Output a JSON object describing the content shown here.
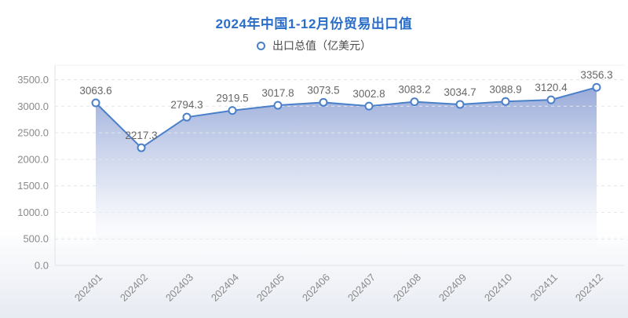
{
  "chart_data": {
    "type": "line",
    "title": "2024年中国1-12月份贸易出口值",
    "legend": {
      "label": "出口总值（亿美元）",
      "marker": "hollow-circle",
      "position": "top-center"
    },
    "series_name": "出口总值",
    "unit": "亿美元",
    "categories": [
      "202401",
      "202402",
      "202403",
      "202404",
      "202405",
      "202406",
      "202407",
      "202408",
      "202409",
      "202410",
      "202411",
      "202412"
    ],
    "values": [
      3063.6,
      2217.3,
      2794.3,
      2919.5,
      3017.8,
      3073.5,
      3002.8,
      3083.2,
      3034.7,
      3088.9,
      3120.4,
      3356.3
    ],
    "ylim": [
      0,
      3500
    ],
    "y_tick_step": 500,
    "y_tick_labels": [
      "0.0",
      "500.0",
      "1000.0",
      "1500.0",
      "2000.0",
      "2500.0",
      "3000.0",
      "3500.0"
    ],
    "x_label_rotation": 45,
    "grid": "horizontal-dashed",
    "area_fill": "gradient-fade-to-bottom",
    "colors": {
      "title": "#2a6ec9",
      "line": "#4a80ca",
      "marker_fill": "#ffffff",
      "area_top": "#93a6d7",
      "area_mid": "#c6d0e9",
      "grid_line": "#e3e5ec",
      "axis_line": "#dfe2e9",
      "value_label": "#666666",
      "tick_label": "#8a8a8a"
    }
  }
}
